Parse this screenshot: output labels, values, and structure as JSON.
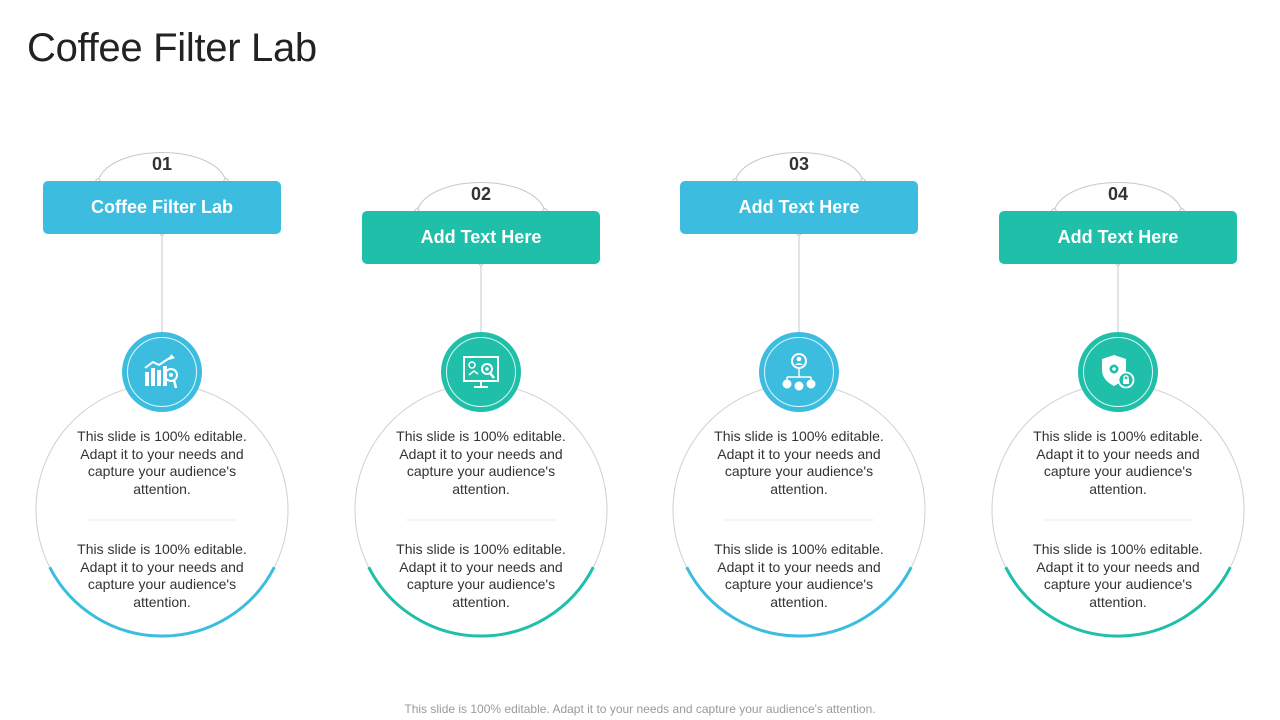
{
  "title": "Coffee Filter Lab",
  "colors": {
    "blue": "#3cbde0",
    "teal": "#1fbfaa",
    "outline": "#d0d0d0"
  },
  "items": [
    {
      "number": "01",
      "label": "Coffee Filter Lab",
      "color": "blue",
      "icon": "bar-chart-growth-icon",
      "text1": "This slide is 100% editable. Adapt it to your needs and capture your audience's attention.",
      "text2": "This slide is 100% editable. Adapt it to your needs and capture your audience's attention."
    },
    {
      "number": "02",
      "label": "Add Text Here",
      "color": "teal",
      "icon": "presentation-analysis-icon",
      "text1": "This slide is 100% editable. Adapt it to your needs and capture your audience's attention.",
      "text2": "This slide is 100% editable. Adapt it to your needs and capture your audience's attention."
    },
    {
      "number": "03",
      "label": "Add Text Here",
      "color": "blue",
      "icon": "user-network-icon",
      "text1": "This slide is 100% editable. Adapt it to your needs and capture your audience's attention.",
      "text2": "This slide is 100% editable. Adapt it to your needs and capture your audience's attention."
    },
    {
      "number": "04",
      "label": "Add Text Here",
      "color": "teal",
      "icon": "security-shield-icon",
      "text1": "This slide is 100% editable. Adapt it to your needs and capture your audience's attention.",
      "text2": "This slide is 100% editable. Adapt it to your needs and capture your audience's attention."
    }
  ],
  "footer": "This slide is 100% editable. Adapt it to your needs and capture your audience's attention."
}
